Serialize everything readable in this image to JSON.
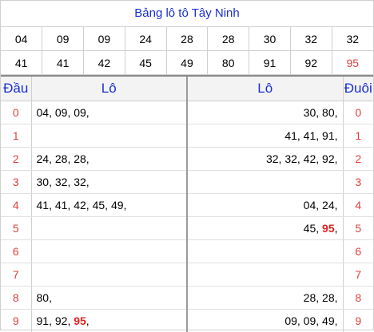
{
  "title": "Bảng lô tô Tây Ninh",
  "numbers_row1": [
    "04",
    "09",
    "09",
    "24",
    "28",
    "28",
    "30",
    "32",
    "32"
  ],
  "numbers_row2": [
    "41",
    "41",
    "42",
    "45",
    "49",
    "80",
    "91",
    "92",
    "95"
  ],
  "headers": {
    "dau": "Đầu",
    "lo_left": "Lô",
    "lo_right": "Lô",
    "duoi": "Đuôi"
  },
  "rows": [
    {
      "dau": "0",
      "left": [
        "04",
        "09",
        "09"
      ],
      "right": [
        "30",
        "80"
      ],
      "duoi": "0"
    },
    {
      "dau": "1",
      "left": [],
      "right": [
        "41",
        "41",
        "91"
      ],
      "duoi": "1"
    },
    {
      "dau": "2",
      "left": [
        "24",
        "28",
        "28"
      ],
      "right": [
        "32",
        "32",
        "42",
        "92"
      ],
      "duoi": "2"
    },
    {
      "dau": "3",
      "left": [
        "30",
        "32",
        "32"
      ],
      "right": [],
      "duoi": "3"
    },
    {
      "dau": "4",
      "left": [
        "41",
        "41",
        "42",
        "45",
        "49"
      ],
      "right": [
        "04",
        "24"
      ],
      "duoi": "4"
    },
    {
      "dau": "5",
      "left": [],
      "right": [
        "45",
        "95"
      ],
      "duoi": "5"
    },
    {
      "dau": "6",
      "left": [],
      "right": [],
      "duoi": "6"
    },
    {
      "dau": "7",
      "left": [],
      "right": [],
      "duoi": "7"
    },
    {
      "dau": "8",
      "left": [
        "80"
      ],
      "right": [
        "28",
        "28"
      ],
      "duoi": "8"
    },
    {
      "dau": "9",
      "left": [
        "91",
        "92",
        "95"
      ],
      "right": [
        "09",
        "09",
        "49"
      ],
      "duoi": "9"
    }
  ],
  "highlight_number": "95",
  "colors": {
    "title": "#1a2fd6",
    "digit": "#e04040",
    "highlight": "#e02020"
  }
}
